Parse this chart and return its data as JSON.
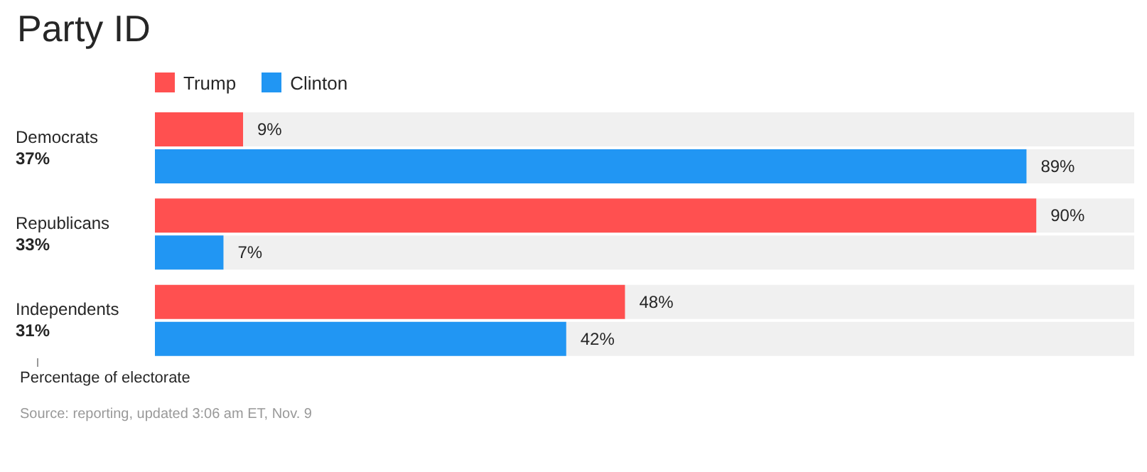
{
  "chart_data": {
    "type": "bar",
    "orientation": "horizontal",
    "title": "Party ID",
    "categories": [
      "Democrats\n37%",
      "Republicans\n33%",
      "Independents\n31%"
    ],
    "series": [
      {
        "name": "Trump",
        "color": "#ff5050",
        "values": [
          9,
          90,
          48
        ],
        "value_labels": [
          "9%",
          "90%",
          "48%"
        ]
      },
      {
        "name": "Clinton",
        "color": "#2196f3",
        "values": [
          89,
          7,
          42
        ],
        "value_labels": [
          "89%",
          "7%",
          "42%"
        ]
      }
    ],
    "xlim": [
      0,
      100
    ],
    "tick_labels": "y",
    "legend": "top left",
    "annotations": [
      "Percentage of electorate",
      "Source: reporting, updated 3:06 am ET, Nov. 9"
    ]
  }
}
